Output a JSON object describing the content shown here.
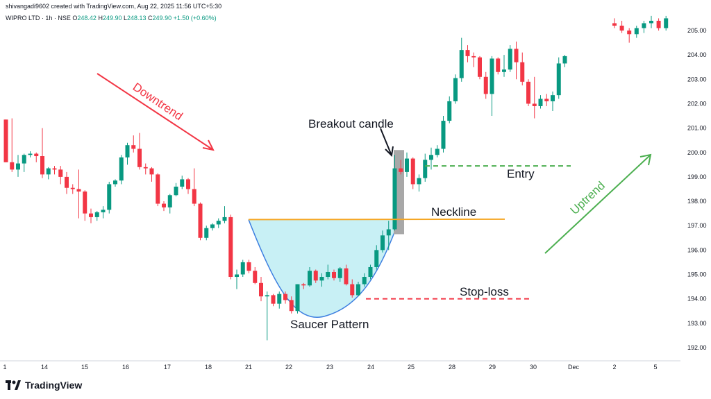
{
  "header": {
    "author_line": "shivangadi9602 created with TradingView.com, Aug 22, 2025 11:56 UTC+5:30",
    "symbol": "WIPRO LTD · 1h · NSE",
    "o_label": "O",
    "o_value": "248.42",
    "h_label": "H",
    "h_value": "249.90",
    "l_label": "L",
    "l_value": "248.13",
    "c_label": "C",
    "c_value": "249.90",
    "change": "+1.50 (+0.60%)"
  },
  "branding": {
    "logo_text": "TradingView"
  },
  "colors": {
    "up": "#089981",
    "down": "#f23645",
    "neckline": "#f5a623",
    "uptrend": "#4caf50",
    "downtrend": "#f23645",
    "saucer_fill": "#c8f0f5",
    "saucer_line": "#3d7fe0",
    "breakout_box": "#a8a8a8",
    "entry": "#4caf50",
    "stoploss": "#f23645"
  },
  "annotations": {
    "downtrend": "Downtrend",
    "uptrend": "Uptrend",
    "breakout": "Breakout candle",
    "entry": "Entry",
    "neckline": "Neckline",
    "stoploss": "Stop-loss",
    "saucer": "Saucer Pattern"
  },
  "chart_data": {
    "type": "candlestick",
    "y_axis": {
      "ticks": [
        "192.00",
        "193.00",
        "194.00",
        "195.00",
        "196.00",
        "197.00",
        "198.00",
        "199.00",
        "200.00",
        "201.00",
        "202.00",
        "203.00",
        "204.00",
        "205.00"
      ],
      "range": [
        191.5,
        205.8
      ]
    },
    "x_axis": {
      "ticks": [
        "1",
        "14",
        "15",
        "16",
        "17",
        "18",
        "21",
        "22",
        "23",
        "24",
        "25",
        "28",
        "29",
        "30",
        "Dec",
        "2",
        "5"
      ]
    },
    "levels": {
      "neckline": 197.25,
      "entry": 199.45,
      "stoploss": 194.0
    },
    "candles": [
      [
        201.35,
        201.35,
        199.6,
        199.6
      ],
      [
        199.6,
        201.4,
        199.2,
        199.3
      ],
      [
        199.3,
        199.9,
        199.0,
        199.55
      ],
      [
        199.55,
        199.95,
        199.2,
        199.9
      ],
      [
        199.9,
        200.05,
        199.8,
        199.95
      ],
      [
        199.95,
        200.0,
        199.6,
        199.85
      ],
      [
        199.85,
        201.0,
        198.95,
        199.1
      ],
      [
        199.1,
        199.4,
        198.9,
        199.35
      ],
      [
        199.35,
        199.45,
        199.1,
        199.3
      ],
      [
        199.3,
        199.45,
        198.7,
        199.0
      ],
      [
        199.0,
        199.2,
        198.3,
        198.55
      ],
      [
        198.55,
        198.7,
        198.3,
        198.5
      ],
      [
        198.5,
        199.3,
        197.3,
        198.4
      ],
      [
        198.4,
        198.45,
        197.2,
        197.5
      ],
      [
        197.5,
        197.7,
        197.1,
        197.35
      ],
      [
        197.35,
        197.6,
        197.2,
        197.55
      ],
      [
        197.55,
        197.8,
        197.3,
        197.65
      ],
      [
        197.65,
        198.8,
        197.5,
        198.7
      ],
      [
        198.7,
        198.9,
        198.6,
        198.85
      ],
      [
        198.85,
        199.9,
        198.7,
        199.8
      ],
      [
        199.8,
        200.4,
        199.5,
        200.3
      ],
      [
        200.3,
        200.7,
        200.0,
        200.15
      ],
      [
        200.15,
        200.8,
        199.3,
        199.4
      ],
      [
        199.4,
        199.55,
        199.1,
        199.35
      ],
      [
        199.35,
        199.4,
        198.8,
        199.1
      ],
      [
        199.1,
        199.15,
        197.8,
        197.9
      ],
      [
        197.9,
        198.0,
        197.6,
        197.75
      ],
      [
        197.75,
        198.3,
        197.5,
        198.25
      ],
      [
        198.25,
        198.75,
        198.2,
        198.6
      ],
      [
        198.6,
        199.05,
        198.5,
        198.9
      ],
      [
        198.9,
        198.95,
        198.3,
        198.5
      ],
      [
        198.5,
        199.35,
        197.8,
        197.9
      ],
      [
        197.9,
        197.95,
        196.4,
        196.5
      ],
      [
        196.5,
        197.0,
        196.4,
        196.9
      ],
      [
        196.9,
        197.1,
        196.8,
        197.05
      ],
      [
        197.05,
        197.3,
        196.9,
        197.2
      ],
      [
        197.2,
        197.8,
        197.1,
        197.35
      ],
      [
        197.35,
        197.45,
        194.8,
        194.9
      ],
      [
        194.9,
        195.2,
        194.4,
        195.0
      ],
      [
        195.0,
        195.6,
        194.9,
        195.5
      ],
      [
        195.5,
        195.6,
        195.05,
        195.15
      ],
      [
        195.15,
        195.3,
        194.6,
        194.65
      ],
      [
        194.65,
        194.9,
        193.9,
        194.1
      ],
      [
        194.1,
        194.3,
        192.3,
        194.15
      ],
      [
        194.15,
        194.2,
        193.7,
        193.8
      ],
      [
        193.8,
        194.3,
        193.6,
        194.2
      ],
      [
        194.2,
        194.3,
        193.8,
        193.95
      ],
      [
        193.95,
        194.1,
        193.4,
        193.5
      ],
      [
        193.5,
        194.6,
        193.4,
        194.6
      ],
      [
        194.6,
        194.65,
        194.4,
        194.55
      ],
      [
        194.55,
        195.3,
        194.5,
        195.15
      ],
      [
        195.15,
        195.2,
        194.65,
        194.75
      ],
      [
        194.75,
        195.05,
        194.5,
        194.9
      ],
      [
        194.9,
        195.4,
        194.8,
        195.1
      ],
      [
        195.1,
        195.2,
        194.75,
        194.85
      ],
      [
        194.85,
        195.3,
        194.7,
        195.25
      ],
      [
        195.25,
        195.4,
        194.55,
        194.6
      ],
      [
        194.6,
        194.8,
        194.05,
        194.15
      ],
      [
        194.15,
        194.7,
        194.1,
        194.6
      ],
      [
        194.6,
        195.05,
        194.5,
        194.9
      ],
      [
        194.9,
        195.4,
        194.8,
        195.3
      ],
      [
        195.3,
        196.2,
        195.2,
        196.0
      ],
      [
        196.0,
        196.8,
        195.9,
        196.6
      ],
      [
        196.6,
        197.2,
        196.0,
        196.85
      ],
      [
        196.85,
        199.9,
        196.8,
        199.35
      ],
      [
        199.35,
        199.7,
        199.1,
        199.2
      ],
      [
        199.2,
        200.0,
        199.0,
        199.75
      ],
      [
        199.75,
        199.8,
        198.5,
        198.7
      ],
      [
        198.7,
        199.1,
        198.4,
        198.95
      ],
      [
        198.95,
        199.95,
        198.8,
        199.7
      ],
      [
        199.7,
        200.2,
        199.3,
        199.9
      ],
      [
        199.9,
        200.3,
        199.8,
        200.15
      ],
      [
        200.15,
        201.5,
        200.0,
        201.3
      ],
      [
        201.3,
        202.3,
        201.2,
        202.1
      ],
      [
        202.1,
        203.2,
        202.0,
        203.05
      ],
      [
        203.05,
        204.7,
        202.9,
        204.2
      ],
      [
        204.2,
        204.4,
        203.7,
        203.95
      ],
      [
        203.95,
        204.1,
        203.5,
        203.9
      ],
      [
        203.9,
        203.95,
        203.0,
        203.1
      ],
      [
        203.1,
        203.3,
        202.2,
        202.4
      ],
      [
        202.4,
        203.95,
        201.5,
        203.85
      ],
      [
        203.85,
        203.9,
        203.2,
        203.3
      ],
      [
        203.3,
        204.0,
        203.1,
        203.4
      ],
      [
        203.4,
        204.4,
        203.3,
        204.25
      ],
      [
        204.25,
        204.55,
        203.0,
        203.7
      ],
      [
        203.7,
        204.1,
        202.75,
        202.9
      ],
      [
        202.9,
        203.0,
        201.9,
        202.0
      ],
      [
        202.0,
        203.1,
        201.4,
        201.9
      ],
      [
        201.9,
        202.35,
        201.8,
        202.2
      ],
      [
        202.2,
        202.4,
        201.9,
        202.1
      ],
      [
        202.1,
        202.5,
        201.7,
        202.35
      ],
      [
        202.35,
        203.9,
        202.2,
        203.65
      ],
      [
        203.65,
        204.0,
        203.5,
        203.95
      ],
      [
        205.3,
        205.5,
        205.1,
        205.2
      ],
      [
        205.2,
        205.4,
        204.9,
        205.0
      ],
      [
        205.0,
        205.1,
        204.5,
        204.85
      ],
      [
        204.85,
        205.2,
        204.7,
        205.1
      ],
      [
        205.1,
        205.4,
        204.9,
        205.3
      ],
      [
        205.3,
        205.6,
        205.1,
        205.4
      ],
      [
        205.4,
        205.5,
        205.0,
        205.1
      ],
      [
        205.1,
        205.6,
        205.0,
        205.5
      ]
    ]
  }
}
